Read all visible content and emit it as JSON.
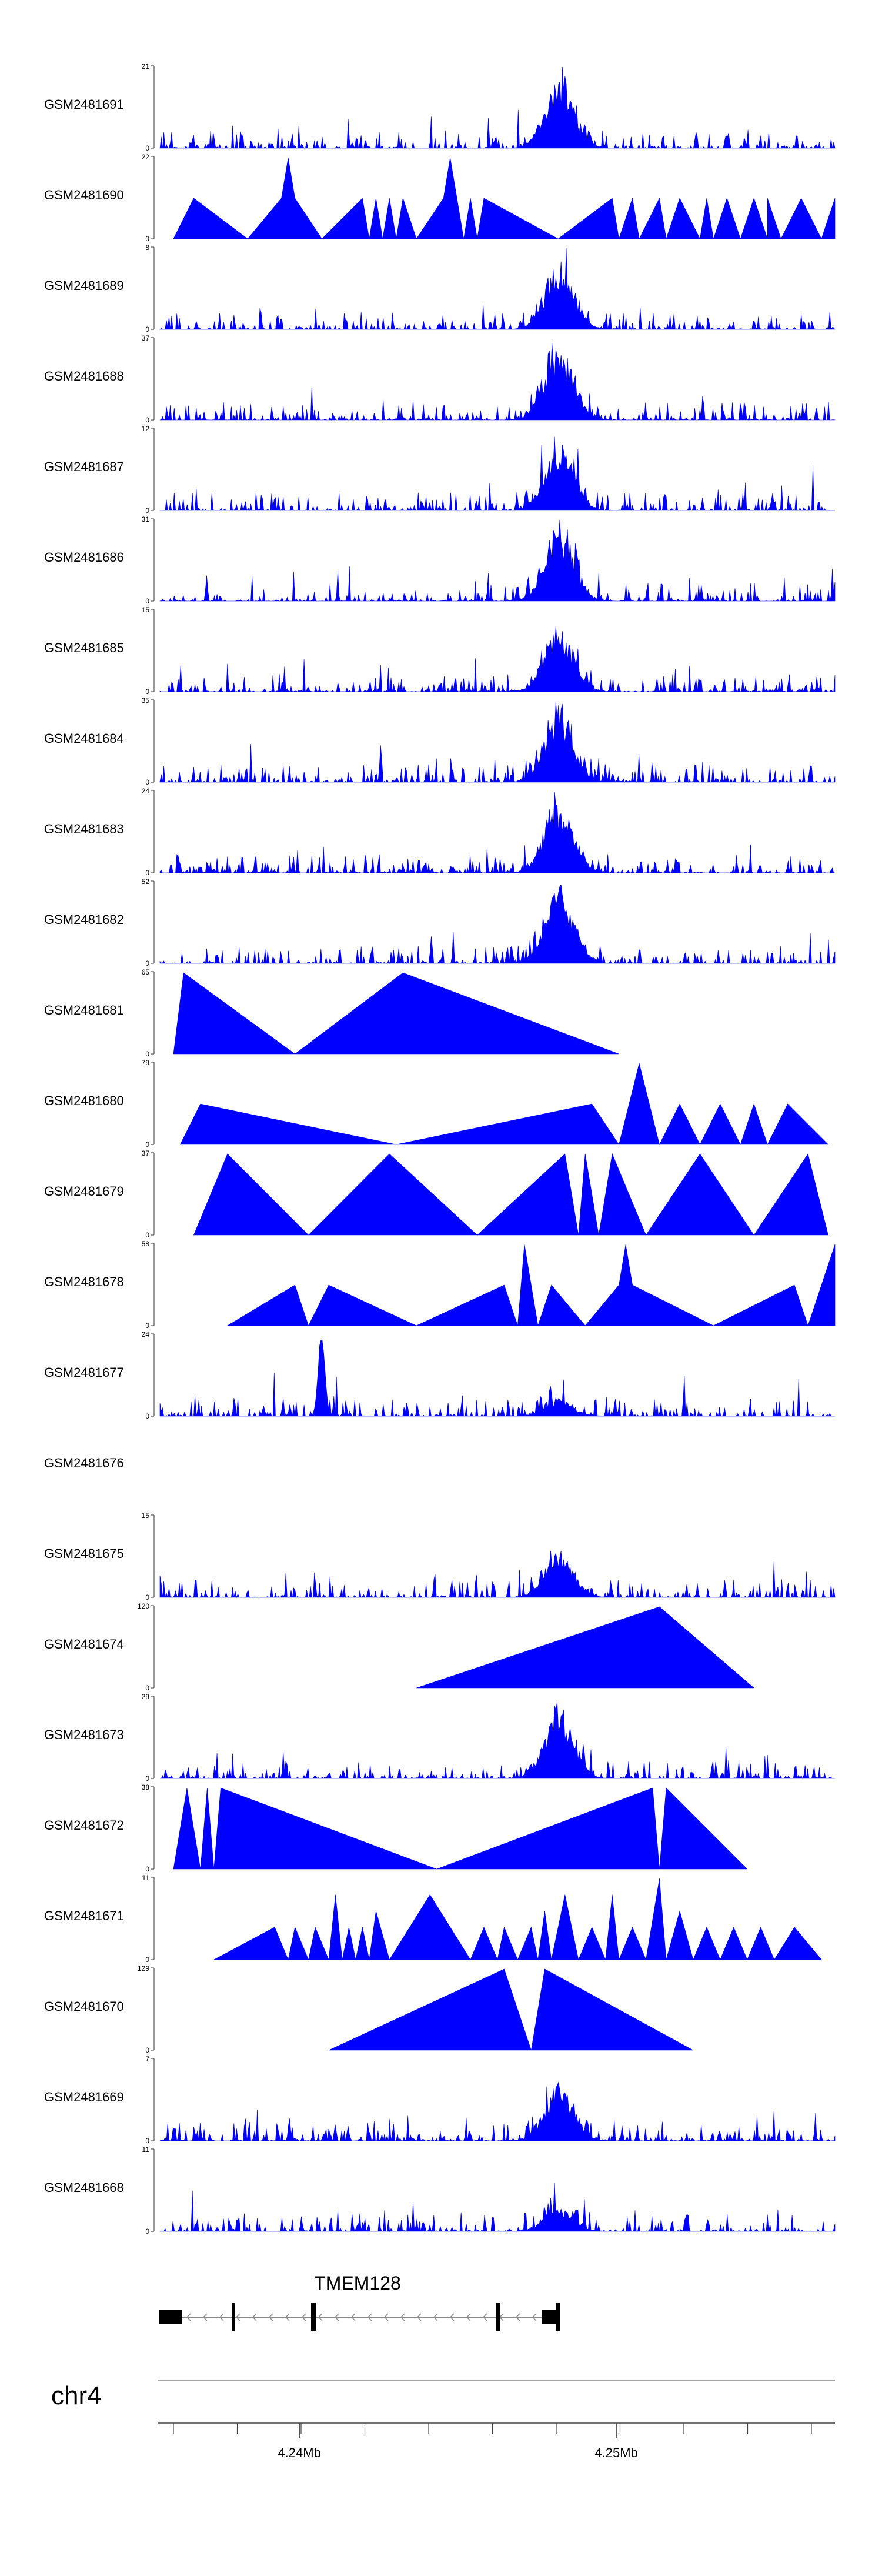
{
  "chart_data": {
    "type": "area",
    "tracks": [
      {
        "name": "GSM2481691",
        "ymax": "21",
        "peak": 0.9
      },
      {
        "name": "GSM2481690",
        "ymax": "22",
        "peak": 0.4
      },
      {
        "name": "GSM2481689",
        "ymax": "8",
        "peak": 0.85
      },
      {
        "name": "GSM2481688",
        "ymax": "37",
        "peak": 0.95
      },
      {
        "name": "GSM2481687",
        "ymax": "12",
        "peak": 0.85
      },
      {
        "name": "GSM2481686",
        "ymax": "31",
        "peak": 0.95
      },
      {
        "name": "GSM2481685",
        "ymax": "15",
        "peak": 0.8
      },
      {
        "name": "GSM2481684",
        "ymax": "35",
        "peak": 0.95
      },
      {
        "name": "GSM2481683",
        "ymax": "24",
        "peak": 0.9
      },
      {
        "name": "GSM2481682",
        "ymax": "52",
        "peak": 0.95
      },
      {
        "name": "GSM2481681",
        "ymax": "65",
        "peak": 0.0
      },
      {
        "name": "GSM2481680",
        "ymax": "79",
        "peak": 0.0
      },
      {
        "name": "GSM2481679",
        "ymax": "37",
        "peak": 0.0
      },
      {
        "name": "GSM2481678",
        "ymax": "58",
        "peak": 0.0
      },
      {
        "name": "GSM2481677",
        "ymax": "24",
        "peak": 0.2
      },
      {
        "name": "GSM2481676",
        "ymax": "",
        "peak": 0.0
      },
      {
        "name": "GSM2481675",
        "ymax": "15",
        "peak": 0.6
      },
      {
        "name": "GSM2481674",
        "ymax": "120",
        "peak": 0.0
      },
      {
        "name": "GSM2481673",
        "ymax": "29",
        "peak": 0.9
      },
      {
        "name": "GSM2481672",
        "ymax": "38",
        "peak": 0.0
      },
      {
        "name": "GSM2481671",
        "ymax": "11",
        "peak": 0.3
      },
      {
        "name": "GSM2481670",
        "ymax": "129",
        "peak": 0.0
      },
      {
        "name": "GSM2481669",
        "ymax": "7",
        "peak": 0.7
      },
      {
        "name": "GSM2481668",
        "ymax": "11",
        "peak": 0.3
      }
    ],
    "gene": {
      "name": "TMEM128",
      "strand": "-"
    },
    "chromosome": "chr4",
    "axis": {
      "tick_labels": [
        "4.24Mb",
        "4.25Mb"
      ],
      "ticks_mb": [
        4.24,
        4.25
      ],
      "xlim_mb": [
        4.2356,
        4.2569
      ]
    },
    "ylim_min": "0",
    "colors": {
      "fill": "#0000ff",
      "axis": "#555555",
      "text": "#000000",
      "gene": "#000000"
    }
  }
}
